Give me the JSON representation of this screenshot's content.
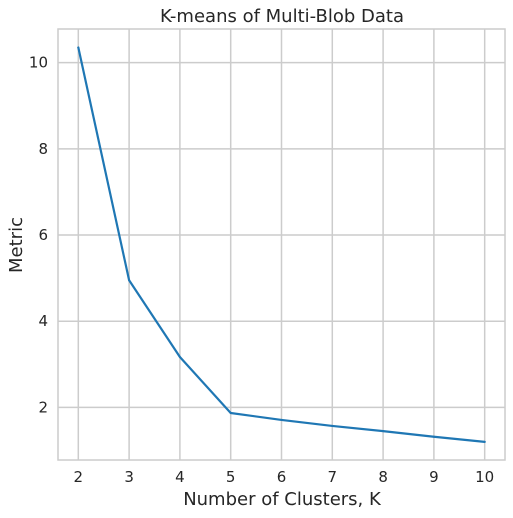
{
  "chart_data": {
    "type": "line",
    "title": "K-means of Multi-Blob Data",
    "xlabel": "Number of Clusters, K",
    "ylabel": "Metric",
    "x": [
      2,
      3,
      4,
      5,
      6,
      7,
      8,
      9,
      10
    ],
    "series": [
      {
        "values": [
          10.35,
          4.95,
          3.17,
          1.87,
          1.71,
          1.57,
          1.45,
          1.32,
          1.2
        ]
      }
    ],
    "xlim": [
      1.6,
      10.4
    ],
    "ylim": [
      0.78,
      10.78
    ],
    "xticks": [
      "2",
      "3",
      "4",
      "5",
      "6",
      "7",
      "8",
      "9",
      "10"
    ],
    "yticks": [
      "2",
      "4",
      "6",
      "8",
      "10"
    ],
    "grid": true,
    "line_color": "#1f77b4",
    "grid_color": "#cccccc",
    "frame_color": "#cccccc"
  }
}
